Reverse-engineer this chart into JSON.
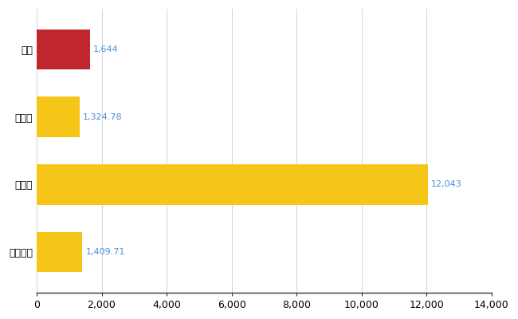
{
  "categories": [
    "南区",
    "県平均",
    "県最大",
    "全国平均"
  ],
  "values": [
    1644,
    1324.78,
    12043,
    1409.71
  ],
  "bar_colors": [
    "#C0272D",
    "#F5C518",
    "#F5C518",
    "#F5C518"
  ],
  "value_labels": [
    "1,644",
    "1,324.78",
    "12,043",
    "1,409.71"
  ],
  "label_color": "#4A90D9",
  "xlim": [
    0,
    14000
  ],
  "xticks": [
    0,
    2000,
    4000,
    6000,
    8000,
    10000,
    12000,
    14000
  ],
  "grid_color": "#CCCCCC",
  "background_color": "#FFFFFF",
  "bar_height": 0.6,
  "figsize": [
    6.5,
    4.0
  ],
  "dpi": 100
}
